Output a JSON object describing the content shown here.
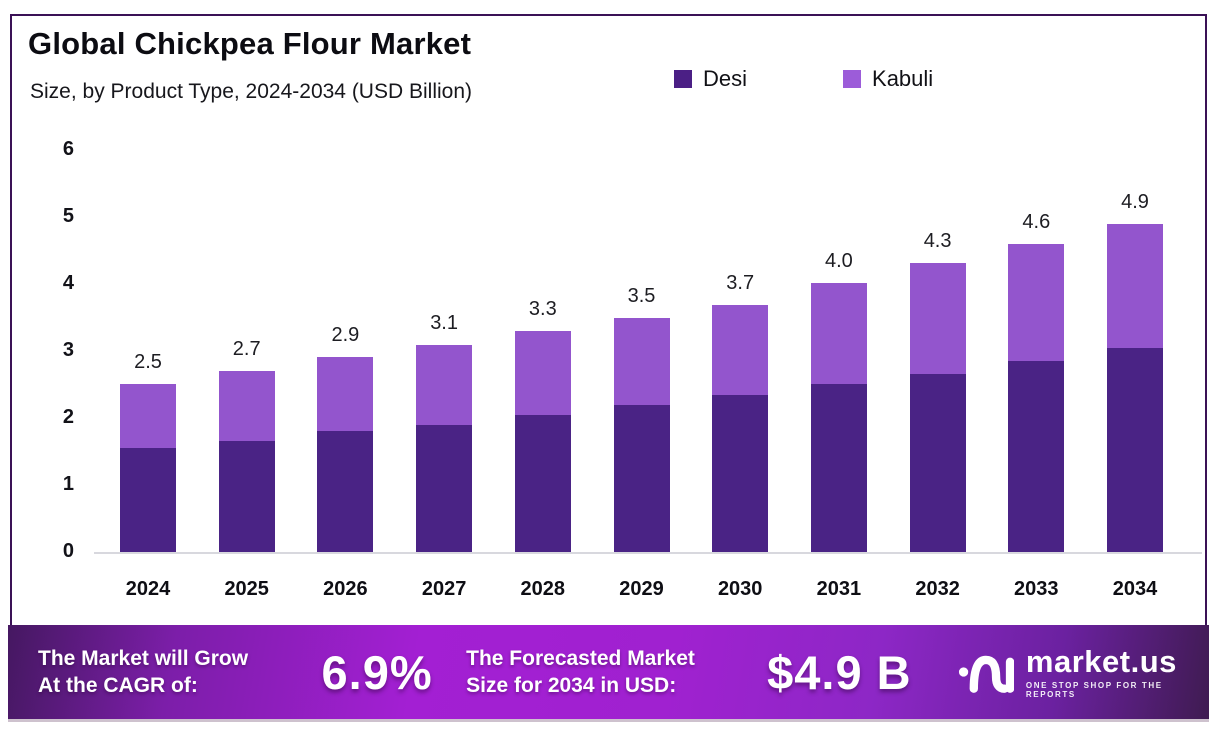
{
  "header": {
    "title": "Global Chickpea Flour Market",
    "subtitle": "Size, by Product Type, 2024-2034 (USD Billion)"
  },
  "legend": {
    "items": [
      {
        "label": "Desi",
        "color": "#4b1f85"
      },
      {
        "label": "Kabuli",
        "color": "#9c5cd9"
      }
    ]
  },
  "chart_data": {
    "type": "bar",
    "stacked": true,
    "title": "Global Chickpea Flour Market Size, by Product Type, 2024-2034 (USD Billion)",
    "categories": [
      "2024",
      "2025",
      "2026",
      "2027",
      "2028",
      "2029",
      "2030",
      "2031",
      "2032",
      "2033",
      "2034"
    ],
    "series": [
      {
        "name": "Desi",
        "color": "#4a2385",
        "values": [
          1.55,
          1.65,
          1.8,
          1.9,
          2.05,
          2.2,
          2.35,
          2.5,
          2.65,
          2.85,
          3.05
        ]
      },
      {
        "name": "Kabuli",
        "color": "#9355cd",
        "values": [
          0.95,
          1.05,
          1.1,
          1.2,
          1.25,
          1.3,
          1.35,
          1.5,
          1.65,
          1.75,
          1.85
        ]
      }
    ],
    "total_labels": [
      "2.5",
      "2.7",
      "2.9",
      "3.1",
      "3.3",
      "3.5",
      "3.7",
      "4.0",
      "4.3",
      "4.6",
      "4.9"
    ],
    "yticks": [
      0,
      1,
      2,
      3,
      4,
      5,
      6
    ],
    "ylim": [
      0,
      6
    ],
    "xlabel": "",
    "ylabel": "",
    "grid": false,
    "legend_position": "top-right"
  },
  "banner": {
    "growth_label_line1": "The Market will Grow",
    "growth_label_line2": "At the CAGR of:",
    "cagr_value": "6.9%",
    "forecast_label_line1": "The Forecasted Market",
    "forecast_label_line2": "Size for 2034 in USD:",
    "forecast_value": "$4.9 B",
    "brand": {
      "name": "market.us",
      "tagline": "ONE STOP SHOP FOR THE REPORTS"
    }
  },
  "colors": {
    "frame_border": "#3a1156",
    "axis_line": "#d8d8de",
    "desi": "#4a2385",
    "kabuli": "#9355cd",
    "banner_bright": "#a21dd0",
    "banner_dark": "#451861",
    "text": "#0c0c12"
  }
}
